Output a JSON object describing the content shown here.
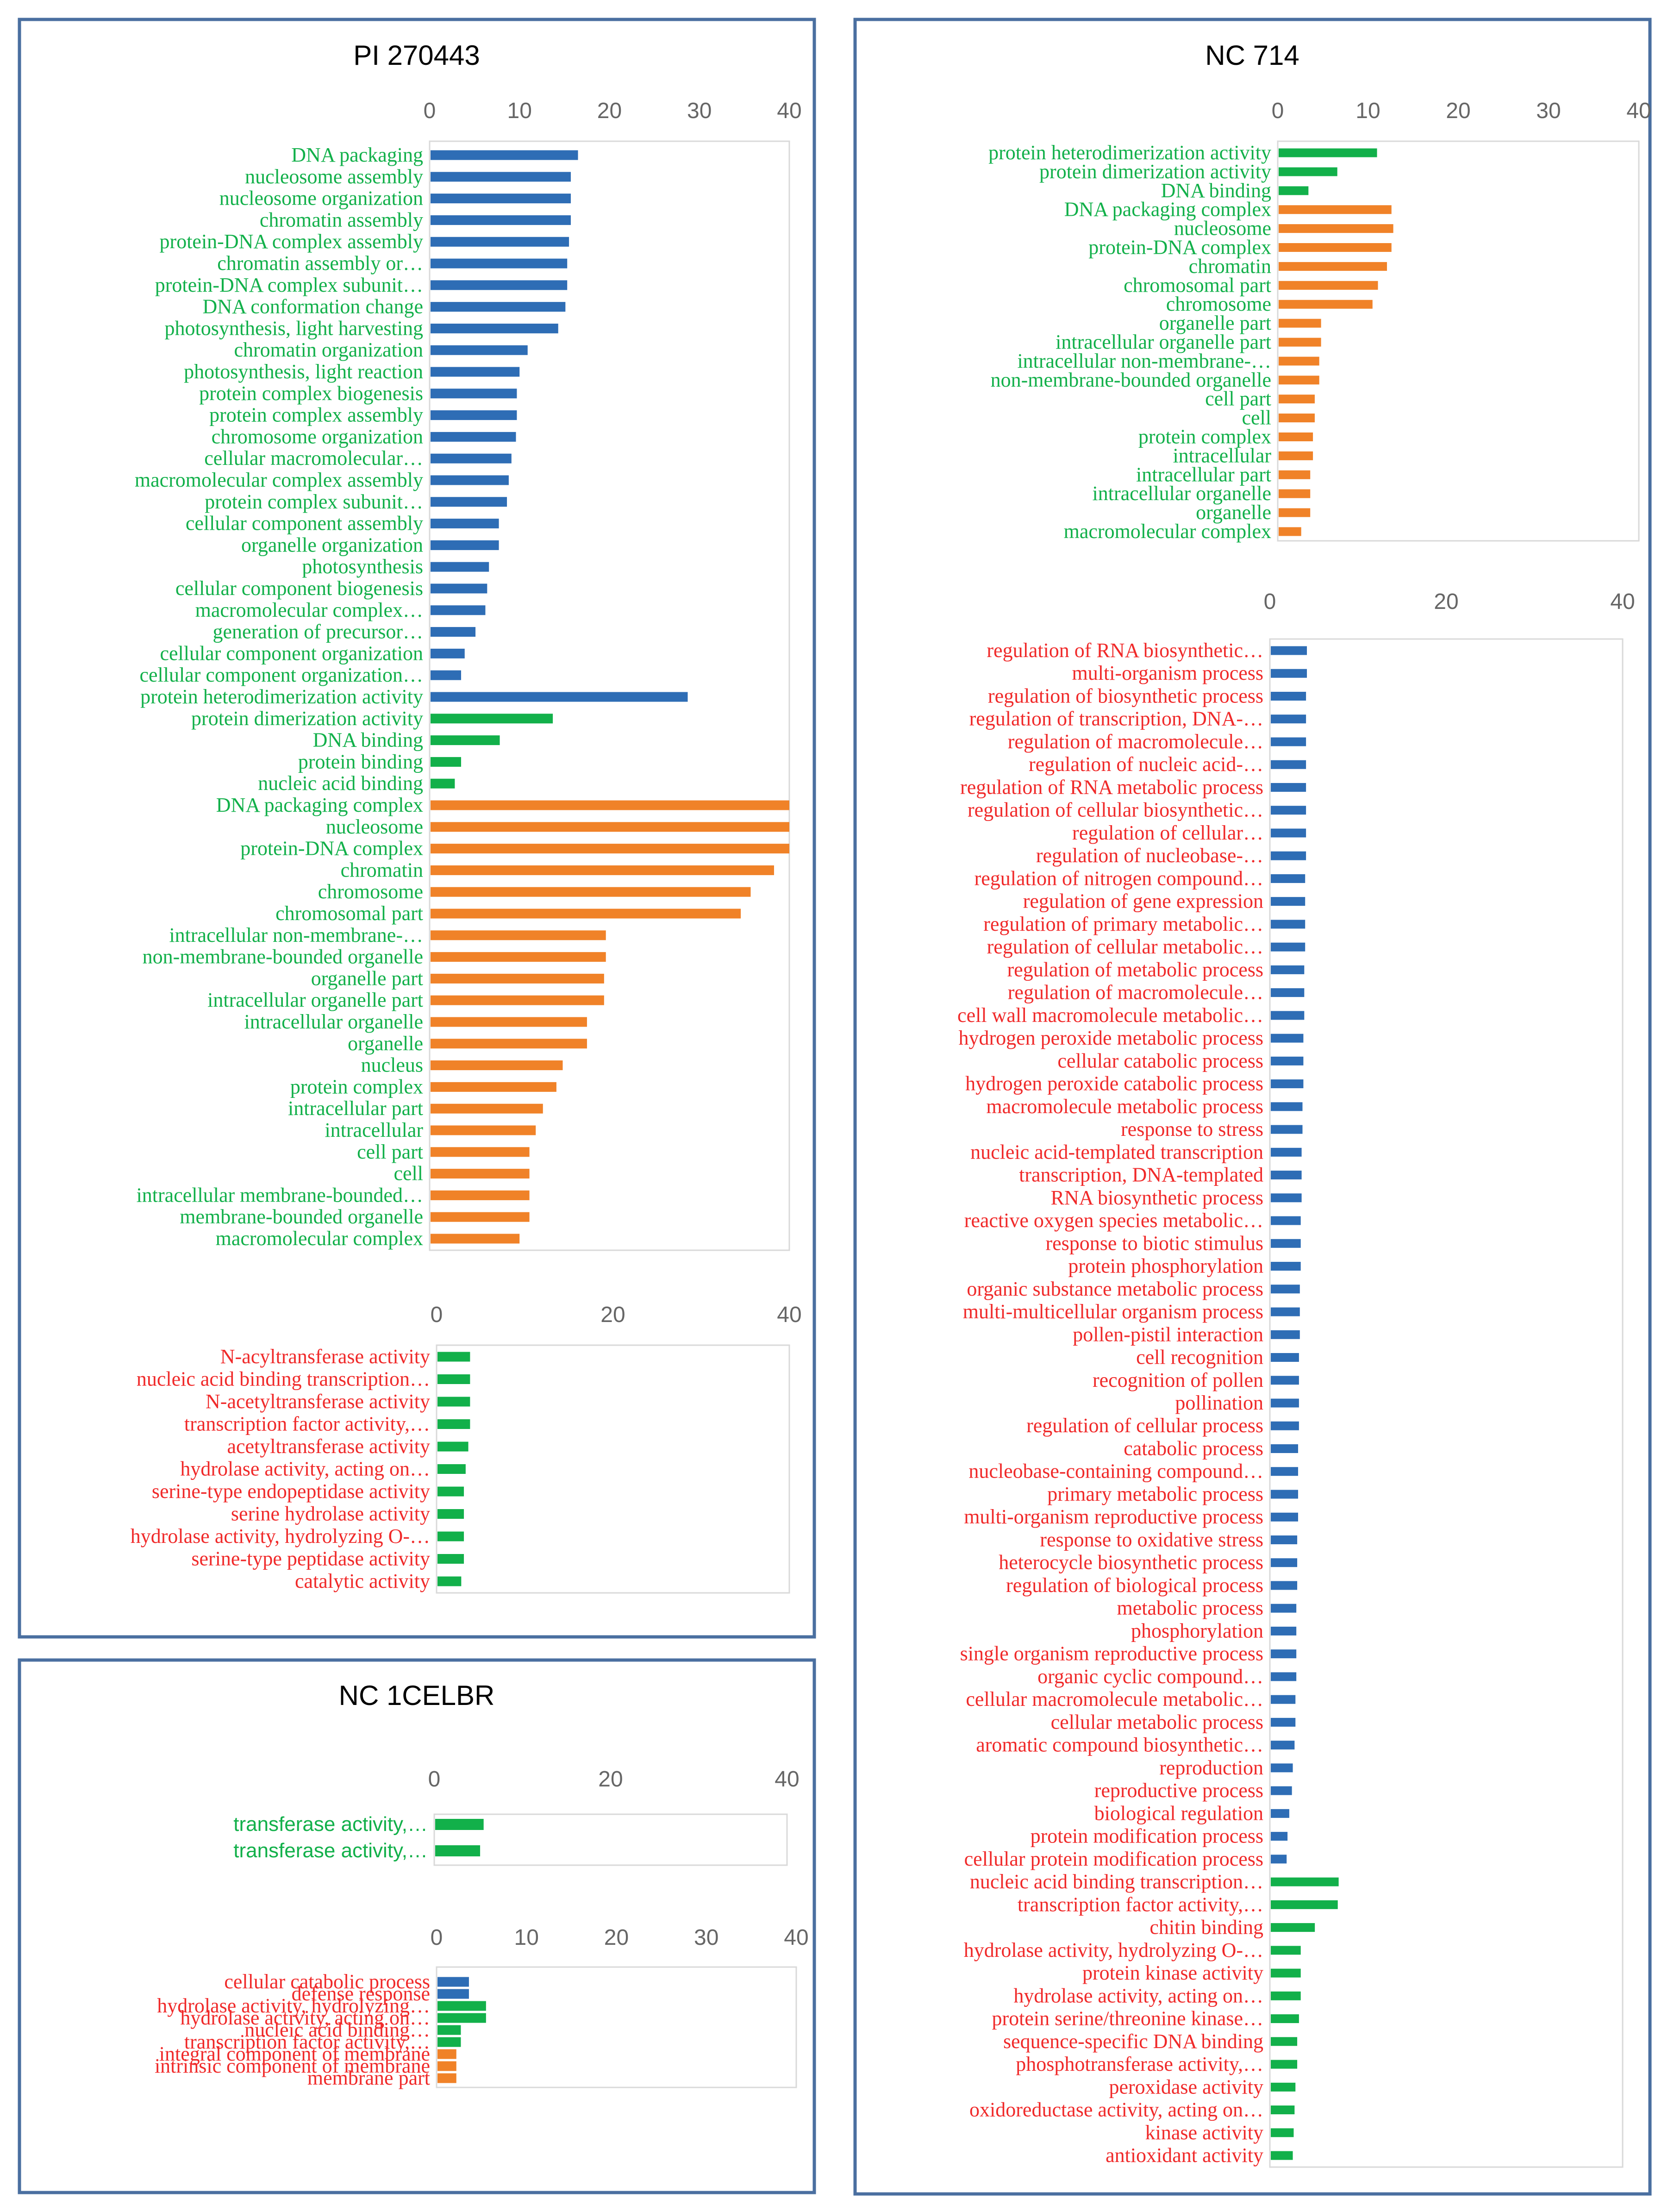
{
  "colors": {
    "blue": "#2E6DB5",
    "orange": "#F08228",
    "green": "#12B04A",
    "red": "#F02A2A",
    "frame": "#4A6FA0"
  },
  "panels": {
    "pi": {
      "title": "PI 270443"
    },
    "nc714": {
      "title": "NC 714"
    },
    "nc1": {
      "title": "NC 1CELBR"
    }
  },
  "chart_data": [
    {
      "id": "pi_a",
      "panel": "PI 270443",
      "type": "bar",
      "orientation": "horizontal",
      "xlim": [
        0,
        40
      ],
      "ticks": [
        0,
        10,
        20,
        30,
        40
      ],
      "label_color": "green",
      "categories": [
        "DNA packaging",
        "nucleosome assembly",
        "nucleosome organization",
        "chromatin assembly",
        "protein-DNA complex assembly",
        "chromatin assembly or…",
        "protein-DNA complex subunit…",
        "DNA conformation change",
        "photosynthesis, light harvesting",
        "chromatin organization",
        "photosynthesis, light reaction",
        "protein complex biogenesis",
        "protein complex assembly",
        "chromosome organization",
        "cellular macromolecular…",
        "macromolecular complex assembly",
        "protein complex subunit…",
        "cellular component assembly",
        "organelle organization",
        "photosynthesis",
        "cellular component biogenesis",
        "macromolecular complex…",
        "generation of precursor…",
        "cellular component organization",
        "cellular component organization…",
        "protein heterodimerization activity",
        "protein dimerization activity",
        "DNA binding",
        "protein binding",
        "nucleic acid binding",
        "DNA packaging complex",
        "nucleosome",
        "protein-DNA complex",
        "chromatin",
        "chromosome",
        "chromosomal part",
        "intracellular non-membrane-…",
        "non-membrane-bounded organelle",
        "organelle part",
        "intracellular organelle part",
        "intracellular organelle",
        "organelle",
        "nucleus",
        "protein complex",
        "intracellular part",
        "intracellular",
        "cell part",
        "cell",
        "intracellular membrane-bounded…",
        "membrane-bounded organelle",
        "macromolecular complex"
      ],
      "values": [
        16.5,
        15.7,
        15.7,
        15.7,
        15.5,
        15.3,
        15.3,
        15.1,
        14.3,
        10.9,
        10,
        9.7,
        9.7,
        9.6,
        9.1,
        8.8,
        8.6,
        7.7,
        7.7,
        6.6,
        6.4,
        6.2,
        5.1,
        3.9,
        3.5,
        28.7,
        13.7,
        7.8,
        3.5,
        2.8,
        40,
        40,
        40,
        38.3,
        35.7,
        34.6,
        19.6,
        19.6,
        19.4,
        19.4,
        17.5,
        17.5,
        14.8,
        14.1,
        12.6,
        11.8,
        11.1,
        11.1,
        11.1,
        11.1,
        10
      ],
      "series_colors": [
        "blue",
        "blue",
        "blue",
        "blue",
        "blue",
        "blue",
        "blue",
        "blue",
        "blue",
        "blue",
        "blue",
        "blue",
        "blue",
        "blue",
        "blue",
        "blue",
        "blue",
        "blue",
        "blue",
        "blue",
        "blue",
        "blue",
        "blue",
        "blue",
        "blue",
        "blue",
        "green",
        "green",
        "green",
        "green",
        "orange",
        "orange",
        "orange",
        "orange",
        "orange",
        "orange",
        "orange",
        "orange",
        "orange",
        "orange",
        "orange",
        "orange",
        "orange",
        "orange",
        "orange",
        "orange",
        "orange",
        "orange",
        "orange",
        "orange",
        "orange"
      ]
    },
    {
      "id": "pi_b",
      "panel": "PI 270443",
      "type": "bar",
      "orientation": "horizontal",
      "xlim": [
        0,
        40
      ],
      "ticks": [
        0,
        20,
        40
      ],
      "label_color": "red",
      "categories": [
        "N-acyltransferase activity",
        "nucleic acid binding transcription…",
        "N-acetyltransferase activity",
        "transcription factor activity,…",
        "acetyltransferase activity",
        "hydrolase activity, acting on…",
        "serine-type endopeptidase activity",
        "serine hydrolase activity",
        "hydrolase activity, hydrolyzing O-…",
        "serine-type peptidase activity",
        "catalytic activity"
      ],
      "values": [
        3.8,
        3.8,
        3.8,
        3.8,
        3.6,
        3.3,
        3.1,
        3.1,
        3.1,
        3.1,
        2.8
      ],
      "series_colors": [
        "green",
        "green",
        "green",
        "green",
        "green",
        "green",
        "green",
        "green",
        "green",
        "green",
        "green"
      ]
    },
    {
      "id": "nc1_a",
      "panel": "NC 1CELBR",
      "type": "bar",
      "orientation": "horizontal",
      "xlim": [
        0,
        40
      ],
      "ticks": [
        0,
        20,
        40
      ],
      "label_color": "green",
      "categories": [
        "transferase activity,…",
        "transferase activity,…"
      ],
      "values": [
        5.6,
        5.2
      ],
      "series_colors": [
        "green",
        "green"
      ]
    },
    {
      "id": "nc1_b",
      "panel": "NC 1CELBR",
      "type": "bar",
      "orientation": "horizontal",
      "xlim": [
        0,
        40
      ],
      "ticks": [
        0,
        10,
        20,
        30,
        40
      ],
      "label_color": "red",
      "categories": [
        "cellular catabolic process",
        "defense response",
        "hydrolase activity, hydrolyzing…",
        "hydrolase activity, acting on…",
        "nucleic acid binding…",
        "transcription factor activity,…",
        "integral component of membrane",
        "intrinsic component of membrane",
        "membrane part"
      ],
      "values": [
        3.6,
        3.6,
        5.5,
        5.5,
        2.7,
        2.7,
        2.2,
        2.2,
        2.2
      ],
      "series_colors": [
        "blue",
        "blue",
        "green",
        "green",
        "green",
        "green",
        "orange",
        "orange",
        "orange"
      ]
    },
    {
      "id": "nc714_a",
      "panel": "NC 714",
      "type": "bar",
      "orientation": "horizontal",
      "xlim": [
        0,
        40
      ],
      "ticks": [
        0,
        10,
        20,
        30,
        40
      ],
      "label_color": "green",
      "categories": [
        "protein heterodimerization activity",
        "protein dimerization activity",
        "DNA binding",
        "DNA packaging complex",
        "nucleosome",
        "protein-DNA complex",
        "chromatin",
        "chromosomal part",
        "chromosome",
        "organelle part",
        "intracellular organelle part",
        "intracellular non-membrane-…",
        "non-membrane-bounded organelle",
        "cell part",
        "cell",
        "protein complex",
        "intracellular",
        "intracellular part",
        "intracellular organelle",
        "organelle",
        "macromolecular complex"
      ],
      "values": [
        11,
        6.6,
        3.4,
        12.6,
        12.8,
        12.6,
        12.1,
        11.1,
        10.5,
        4.8,
        4.8,
        4.6,
        4.6,
        4.1,
        4.1,
        3.9,
        3.9,
        3.6,
        3.6,
        3.6,
        2.6
      ],
      "series_colors": [
        "green",
        "green",
        "green",
        "orange",
        "orange",
        "orange",
        "orange",
        "orange",
        "orange",
        "orange",
        "orange",
        "orange",
        "orange",
        "orange",
        "orange",
        "orange",
        "orange",
        "orange",
        "orange",
        "orange",
        "orange"
      ]
    },
    {
      "id": "nc714_b",
      "panel": "NC 714",
      "type": "bar",
      "orientation": "horizontal",
      "xlim": [
        0,
        40
      ],
      "ticks": [
        0,
        20,
        40
      ],
      "label_color": "red",
      "categories": [
        "regulation of RNA biosynthetic…",
        "multi-organism process",
        "regulation of biosynthetic process",
        "regulation of transcription, DNA-…",
        "regulation of macromolecule…",
        "regulation of nucleic acid-…",
        "regulation of RNA metabolic process",
        "regulation of cellular biosynthetic…",
        "regulation of cellular…",
        "regulation of nucleobase-…",
        "regulation of nitrogen compound…",
        "regulation of gene expression",
        "regulation of primary metabolic…",
        "regulation of cellular metabolic…",
        "regulation of metabolic process",
        "regulation of macromolecule…",
        "cell wall macromolecule metabolic…",
        "hydrogen peroxide metabolic process",
        "cellular catabolic process",
        "hydrogen peroxide catabolic process",
        "macromolecule metabolic process",
        "response to stress",
        "nucleic acid-templated transcription",
        "transcription, DNA-templated",
        "RNA biosynthetic process",
        "reactive oxygen species metabolic…",
        "response to biotic stimulus",
        "protein phosphorylation",
        "organic substance metabolic process",
        "multi-multicellular organism process",
        "pollen-pistil interaction",
        "cell recognition",
        "recognition of pollen",
        "pollination",
        "regulation of cellular process",
        "catabolic process",
        "nucleobase-containing compound…",
        "primary metabolic process",
        "multi-organism reproductive process",
        "response to oxidative stress",
        "heterocycle biosynthetic process",
        "regulation of biological process",
        "metabolic process",
        "phosphorylation",
        "single organism reproductive process",
        "organic cyclic compound…",
        "cellular macromolecule metabolic…",
        "cellular metabolic process",
        "aromatic compound biosynthetic…",
        "reproduction",
        "reproductive process",
        "biological regulation",
        "protein modification process",
        "cellular protein modification process",
        "nucleic acid binding transcription…",
        "transcription factor activity,…",
        "chitin binding",
        "hydrolase activity, hydrolyzing O-…",
        "protein kinase activity",
        "hydrolase activity, acting on…",
        "protein serine/threonine kinase…",
        "sequence-specific DNA binding",
        "phosphotransferase activity,…",
        "peroxidase activity",
        "oxidoreductase activity, acting on…",
        "kinase activity",
        "antioxidant activity"
      ],
      "values": [
        4.2,
        4.2,
        4.1,
        4.1,
        4.1,
        4.1,
        4.1,
        4.1,
        4.1,
        4.1,
        4,
        4,
        4,
        4,
        3.9,
        3.9,
        3.9,
        3.8,
        3.8,
        3.8,
        3.7,
        3.7,
        3.6,
        3.6,
        3.6,
        3.5,
        3.5,
        3.5,
        3.4,
        3.4,
        3.4,
        3.3,
        3.3,
        3.3,
        3.3,
        3.2,
        3.2,
        3.2,
        3.2,
        3.1,
        3.1,
        3.1,
        3,
        3,
        3,
        3,
        2.9,
        2.9,
        2.8,
        2.6,
        2.5,
        2.2,
        2,
        1.9,
        7.8,
        7.7,
        5.1,
        3.5,
        3.5,
        3.5,
        3.3,
        3.1,
        3.1,
        2.9,
        2.8,
        2.7,
        2.6
      ],
      "series_colors": [
        "blue",
        "blue",
        "blue",
        "blue",
        "blue",
        "blue",
        "blue",
        "blue",
        "blue",
        "blue",
        "blue",
        "blue",
        "blue",
        "blue",
        "blue",
        "blue",
        "blue",
        "blue",
        "blue",
        "blue",
        "blue",
        "blue",
        "blue",
        "blue",
        "blue",
        "blue",
        "blue",
        "blue",
        "blue",
        "blue",
        "blue",
        "blue",
        "blue",
        "blue",
        "blue",
        "blue",
        "blue",
        "blue",
        "blue",
        "blue",
        "blue",
        "blue",
        "blue",
        "blue",
        "blue",
        "blue",
        "blue",
        "blue",
        "blue",
        "blue",
        "blue",
        "blue",
        "blue",
        "blue",
        "green",
        "green",
        "green",
        "green",
        "green",
        "green",
        "green",
        "green",
        "green",
        "green",
        "green",
        "green",
        "green"
      ]
    }
  ]
}
